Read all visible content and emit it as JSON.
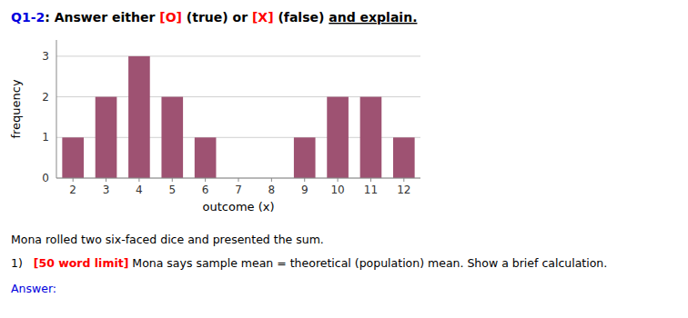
{
  "chart_data": {
    "type": "bar",
    "title": [
      {
        "text": "Q1-2",
        "color": "#0000dd"
      },
      {
        "text": ": Answer either ",
        "color": "#000000"
      },
      {
        "text": "[O]",
        "color": "#ff0000"
      },
      {
        "text": " (true) or ",
        "color": "#000000"
      },
      {
        "text": "[X]",
        "color": "#ff0000"
      },
      {
        "text": " (false) ",
        "color": "#000000"
      },
      {
        "text": "and explain.",
        "color": "#000000"
      }
    ],
    "xlabel": "outcome (x)",
    "ylabel": "frequency",
    "x": [
      2,
      3,
      4,
      5,
      6,
      7,
      8,
      9,
      10,
      11,
      12
    ],
    "values": [
      1,
      2,
      3,
      2,
      1,
      0,
      0,
      1,
      2,
      2,
      1
    ],
    "color": "#9E5272",
    "xlim": [
      1.5,
      12.5
    ],
    "xticks": [
      2,
      3,
      4,
      5,
      6,
      7,
      8,
      9,
      10,
      11,
      12
    ],
    "ylim": [
      0,
      3.4
    ],
    "yticks": [
      0,
      1,
      2,
      3
    ],
    "grid": true,
    "annotations": [
      [
        {
          "text": "Mona rolled two six-faced dice and presented the sum.",
          "color": "#000000"
        }
      ],
      [
        {
          "text": "1)   ",
          "color": "#000000"
        },
        {
          "text": "[50 word limit]",
          "color": "#ff0000"
        },
        {
          "text": " Mona says ",
          "color": "#000000"
        },
        {
          "text": "sample mean",
          "color": "#000000"
        },
        {
          "text": " = ",
          "color": "#000000"
        },
        {
          "text": "theoretical (population) mean",
          "color": "#000000"
        },
        {
          "text": ". Show a brief calculation.",
          "color": "#000000"
        }
      ],
      [
        {
          "text": "Answer:",
          "color": "#0000dd"
        }
      ]
    ]
  }
}
